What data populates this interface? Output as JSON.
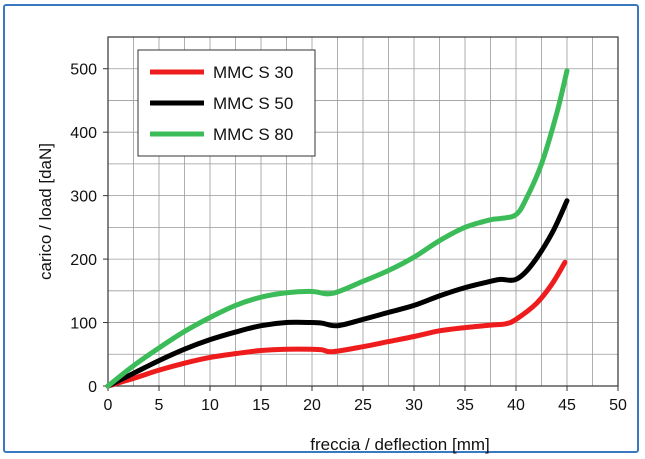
{
  "chart_data": {
    "type": "line",
    "xlabel": "freccia / deflection [mm]",
    "ylabel": "carico / load [daN]",
    "xlim": [
      0,
      50
    ],
    "ylim": [
      0,
      550
    ],
    "xticks": [
      0,
      5,
      10,
      15,
      20,
      25,
      30,
      35,
      40,
      45,
      50
    ],
    "yticks": [
      0,
      100,
      200,
      300,
      400,
      500
    ],
    "grid": true,
    "legend_position": "top-left",
    "series": [
      {
        "name": "MMC S 30",
        "color": "#ee1c1c",
        "x": [
          0,
          2.5,
          5,
          7.5,
          10,
          12.5,
          15,
          17.5,
          20,
          21,
          22,
          25,
          27.5,
          30,
          32.5,
          35,
          37.5,
          39,
          40,
          42,
          43.5,
          44.8
        ],
        "y": [
          0,
          12,
          25,
          36,
          45,
          51,
          56,
          58,
          58,
          57,
          54,
          62,
          70,
          78,
          87,
          92,
          96,
          98,
          105,
          130,
          160,
          195
        ]
      },
      {
        "name": "MMC S 50",
        "color": "#000000",
        "x": [
          0,
          2.5,
          5,
          7.5,
          10,
          12.5,
          15,
          17.5,
          20,
          21,
          22.5,
          25,
          27.5,
          30,
          32.5,
          35,
          37.5,
          38.5,
          40,
          41.5,
          43.5,
          45
        ],
        "y": [
          0,
          20,
          40,
          58,
          73,
          85,
          95,
          100,
          100,
          99,
          95,
          105,
          116,
          127,
          142,
          155,
          165,
          168,
          168,
          190,
          240,
          292
        ]
      },
      {
        "name": "MMC S 80",
        "color": "#3cbc58",
        "x": [
          0,
          2.5,
          5,
          7.5,
          10,
          12.5,
          15,
          17.5,
          20,
          22,
          25,
          27.5,
          30,
          32.5,
          35,
          37.5,
          38.5,
          40,
          41,
          42.5,
          44,
          45
        ],
        "y": [
          0,
          32,
          60,
          86,
          108,
          127,
          140,
          147,
          149,
          146,
          165,
          182,
          203,
          229,
          250,
          262,
          264,
          270,
          295,
          350,
          430,
          497
        ]
      }
    ]
  }
}
